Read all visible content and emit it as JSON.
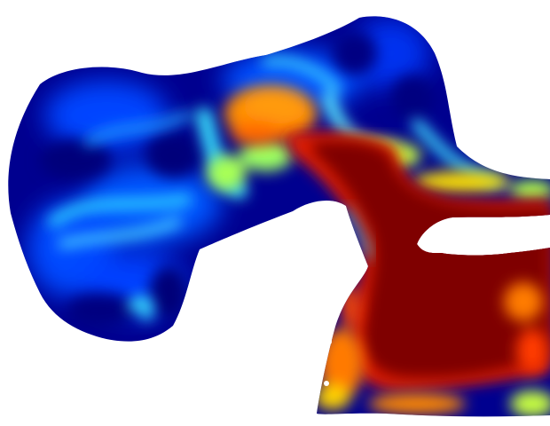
{
  "image": {
    "colormap": "jet",
    "background_color": "#ffffff",
    "palette": {
      "deep_blue": "#00007f",
      "blue": "#0033ff",
      "bright_blue": "#1a66ff",
      "cyan": "#35e1ff",
      "green_yellow": "#b8ff47",
      "yellow": "#ffe600",
      "orange": "#ff8a00",
      "red": "#dd1500",
      "dark_red": "#7f0000"
    }
  }
}
